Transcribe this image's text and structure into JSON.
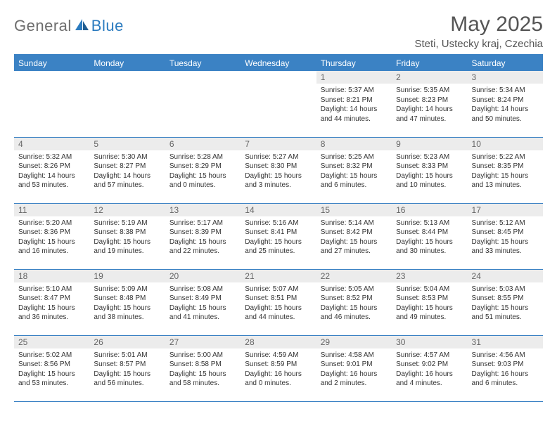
{
  "brand": {
    "part1": "General",
    "part2": "Blue"
  },
  "title": "May 2025",
  "location": "Steti, Ustecky kraj, Czechia",
  "colors": {
    "header_bg": "#3b82c4",
    "daynum_bg": "#ececec",
    "text": "#333333",
    "brand_gray": "#6d6d6d",
    "brand_blue": "#2b7bbf"
  },
  "weekdays": [
    "Sunday",
    "Monday",
    "Tuesday",
    "Wednesday",
    "Thursday",
    "Friday",
    "Saturday"
  ],
  "weeks": [
    [
      {
        "n": "",
        "sr": "",
        "ss": "",
        "dl": "",
        "empty": true
      },
      {
        "n": "",
        "sr": "",
        "ss": "",
        "dl": "",
        "empty": true
      },
      {
        "n": "",
        "sr": "",
        "ss": "",
        "dl": "",
        "empty": true
      },
      {
        "n": "",
        "sr": "",
        "ss": "",
        "dl": "",
        "empty": true
      },
      {
        "n": "1",
        "sr": "Sunrise: 5:37 AM",
        "ss": "Sunset: 8:21 PM",
        "dl": "Daylight: 14 hours and 44 minutes."
      },
      {
        "n": "2",
        "sr": "Sunrise: 5:35 AM",
        "ss": "Sunset: 8:23 PM",
        "dl": "Daylight: 14 hours and 47 minutes."
      },
      {
        "n": "3",
        "sr": "Sunrise: 5:34 AM",
        "ss": "Sunset: 8:24 PM",
        "dl": "Daylight: 14 hours and 50 minutes."
      }
    ],
    [
      {
        "n": "4",
        "sr": "Sunrise: 5:32 AM",
        "ss": "Sunset: 8:26 PM",
        "dl": "Daylight: 14 hours and 53 minutes."
      },
      {
        "n": "5",
        "sr": "Sunrise: 5:30 AM",
        "ss": "Sunset: 8:27 PM",
        "dl": "Daylight: 14 hours and 57 minutes."
      },
      {
        "n": "6",
        "sr": "Sunrise: 5:28 AM",
        "ss": "Sunset: 8:29 PM",
        "dl": "Daylight: 15 hours and 0 minutes."
      },
      {
        "n": "7",
        "sr": "Sunrise: 5:27 AM",
        "ss": "Sunset: 8:30 PM",
        "dl": "Daylight: 15 hours and 3 minutes."
      },
      {
        "n": "8",
        "sr": "Sunrise: 5:25 AM",
        "ss": "Sunset: 8:32 PM",
        "dl": "Daylight: 15 hours and 6 minutes."
      },
      {
        "n": "9",
        "sr": "Sunrise: 5:23 AM",
        "ss": "Sunset: 8:33 PM",
        "dl": "Daylight: 15 hours and 10 minutes."
      },
      {
        "n": "10",
        "sr": "Sunrise: 5:22 AM",
        "ss": "Sunset: 8:35 PM",
        "dl": "Daylight: 15 hours and 13 minutes."
      }
    ],
    [
      {
        "n": "11",
        "sr": "Sunrise: 5:20 AM",
        "ss": "Sunset: 8:36 PM",
        "dl": "Daylight: 15 hours and 16 minutes."
      },
      {
        "n": "12",
        "sr": "Sunrise: 5:19 AM",
        "ss": "Sunset: 8:38 PM",
        "dl": "Daylight: 15 hours and 19 minutes."
      },
      {
        "n": "13",
        "sr": "Sunrise: 5:17 AM",
        "ss": "Sunset: 8:39 PM",
        "dl": "Daylight: 15 hours and 22 minutes."
      },
      {
        "n": "14",
        "sr": "Sunrise: 5:16 AM",
        "ss": "Sunset: 8:41 PM",
        "dl": "Daylight: 15 hours and 25 minutes."
      },
      {
        "n": "15",
        "sr": "Sunrise: 5:14 AM",
        "ss": "Sunset: 8:42 PM",
        "dl": "Daylight: 15 hours and 27 minutes."
      },
      {
        "n": "16",
        "sr": "Sunrise: 5:13 AM",
        "ss": "Sunset: 8:44 PM",
        "dl": "Daylight: 15 hours and 30 minutes."
      },
      {
        "n": "17",
        "sr": "Sunrise: 5:12 AM",
        "ss": "Sunset: 8:45 PM",
        "dl": "Daylight: 15 hours and 33 minutes."
      }
    ],
    [
      {
        "n": "18",
        "sr": "Sunrise: 5:10 AM",
        "ss": "Sunset: 8:47 PM",
        "dl": "Daylight: 15 hours and 36 minutes."
      },
      {
        "n": "19",
        "sr": "Sunrise: 5:09 AM",
        "ss": "Sunset: 8:48 PM",
        "dl": "Daylight: 15 hours and 38 minutes."
      },
      {
        "n": "20",
        "sr": "Sunrise: 5:08 AM",
        "ss": "Sunset: 8:49 PM",
        "dl": "Daylight: 15 hours and 41 minutes."
      },
      {
        "n": "21",
        "sr": "Sunrise: 5:07 AM",
        "ss": "Sunset: 8:51 PM",
        "dl": "Daylight: 15 hours and 44 minutes."
      },
      {
        "n": "22",
        "sr": "Sunrise: 5:05 AM",
        "ss": "Sunset: 8:52 PM",
        "dl": "Daylight: 15 hours and 46 minutes."
      },
      {
        "n": "23",
        "sr": "Sunrise: 5:04 AM",
        "ss": "Sunset: 8:53 PM",
        "dl": "Daylight: 15 hours and 49 minutes."
      },
      {
        "n": "24",
        "sr": "Sunrise: 5:03 AM",
        "ss": "Sunset: 8:55 PM",
        "dl": "Daylight: 15 hours and 51 minutes."
      }
    ],
    [
      {
        "n": "25",
        "sr": "Sunrise: 5:02 AM",
        "ss": "Sunset: 8:56 PM",
        "dl": "Daylight: 15 hours and 53 minutes."
      },
      {
        "n": "26",
        "sr": "Sunrise: 5:01 AM",
        "ss": "Sunset: 8:57 PM",
        "dl": "Daylight: 15 hours and 56 minutes."
      },
      {
        "n": "27",
        "sr": "Sunrise: 5:00 AM",
        "ss": "Sunset: 8:58 PM",
        "dl": "Daylight: 15 hours and 58 minutes."
      },
      {
        "n": "28",
        "sr": "Sunrise: 4:59 AM",
        "ss": "Sunset: 8:59 PM",
        "dl": "Daylight: 16 hours and 0 minutes."
      },
      {
        "n": "29",
        "sr": "Sunrise: 4:58 AM",
        "ss": "Sunset: 9:01 PM",
        "dl": "Daylight: 16 hours and 2 minutes."
      },
      {
        "n": "30",
        "sr": "Sunrise: 4:57 AM",
        "ss": "Sunset: 9:02 PM",
        "dl": "Daylight: 16 hours and 4 minutes."
      },
      {
        "n": "31",
        "sr": "Sunrise: 4:56 AM",
        "ss": "Sunset: 9:03 PM",
        "dl": "Daylight: 16 hours and 6 minutes."
      }
    ]
  ]
}
